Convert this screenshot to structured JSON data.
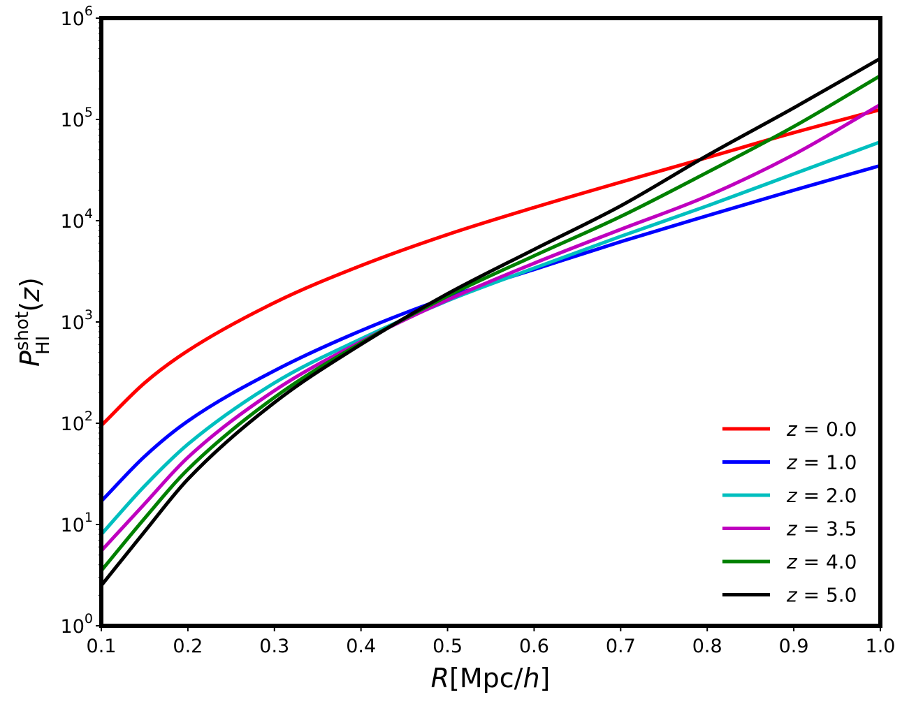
{
  "chart_data": {
    "type": "line",
    "xlabel": {
      "var": "R",
      "unit_open": "[Mpc/",
      "unit_var": "h",
      "unit_close": "]"
    },
    "ylabel": {
      "var": "P",
      "sup": "shot",
      "sub": "HI",
      "arg_open": "(",
      "arg_var": "z",
      "arg_close": ")"
    },
    "xlim": [
      0.1,
      1.0
    ],
    "ylim": [
      1,
      1000000
    ],
    "yscale": "log",
    "grid": false,
    "legend_position": "lower-right",
    "x_ticks": [
      "0.1",
      "0.2",
      "0.3",
      "0.4",
      "0.5",
      "0.6",
      "0.7",
      "0.8",
      "0.9",
      "1.0"
    ],
    "y_ticks": [
      {
        "value": 1,
        "base": "10",
        "exp": "0"
      },
      {
        "value": 10,
        "base": "10",
        "exp": "1"
      },
      {
        "value": 100,
        "base": "10",
        "exp": "2"
      },
      {
        "value": 1000,
        "base": "10",
        "exp": "3"
      },
      {
        "value": 10000,
        "base": "10",
        "exp": "4"
      },
      {
        "value": 100000,
        "base": "10",
        "exp": "5"
      },
      {
        "value": 1000000,
        "base": "10",
        "exp": "6"
      }
    ],
    "x": [
      0.1,
      0.15,
      0.2,
      0.3,
      0.4,
      0.5,
      0.6,
      0.7,
      0.8,
      0.9,
      1.0
    ],
    "series": [
      {
        "name": "z = 0.0",
        "label_var": "z",
        "label_value": "0.0",
        "color": "#ff0000",
        "values": [
          95,
          250,
          520,
          1550,
          3600,
          7300,
          13500,
          24000,
          42000,
          74000,
          125000
        ]
      },
      {
        "name": "z = 1.0",
        "label_var": "z",
        "label_value": "1.0",
        "color": "#0000ff",
        "values": [
          17,
          47,
          105,
          330,
          820,
          1750,
          3300,
          6200,
          11200,
          20000,
          35000
        ]
      },
      {
        "name": "z = 2.0",
        "label_var": "z",
        "label_value": "2.0",
        "color": "#00bfbf",
        "values": [
          8,
          24,
          62,
          250,
          680,
          1620,
          3400,
          7000,
          14000,
          29000,
          60000
        ]
      },
      {
        "name": "z = 3.5",
        "label_var": "z",
        "label_value": "3.5",
        "color": "#bf00bf",
        "values": [
          5.5,
          16,
          46,
          210,
          640,
          1650,
          3800,
          8200,
          17500,
          45000,
          140000
        ]
      },
      {
        "name": "z = 4.0",
        "label_var": "z",
        "label_value": "4.0",
        "color": "#008000",
        "values": [
          3.5,
          11.5,
          35,
          180,
          620,
          1800,
          4500,
          11000,
          30000,
          85000,
          270000
        ]
      },
      {
        "name": "z = 5.0",
        "label_var": "z",
        "label_value": "5.0",
        "color": "#000000",
        "values": [
          2.5,
          8.5,
          28,
          160,
          600,
          1900,
          5200,
          14000,
          44000,
          130000,
          400000
        ]
      }
    ]
  }
}
